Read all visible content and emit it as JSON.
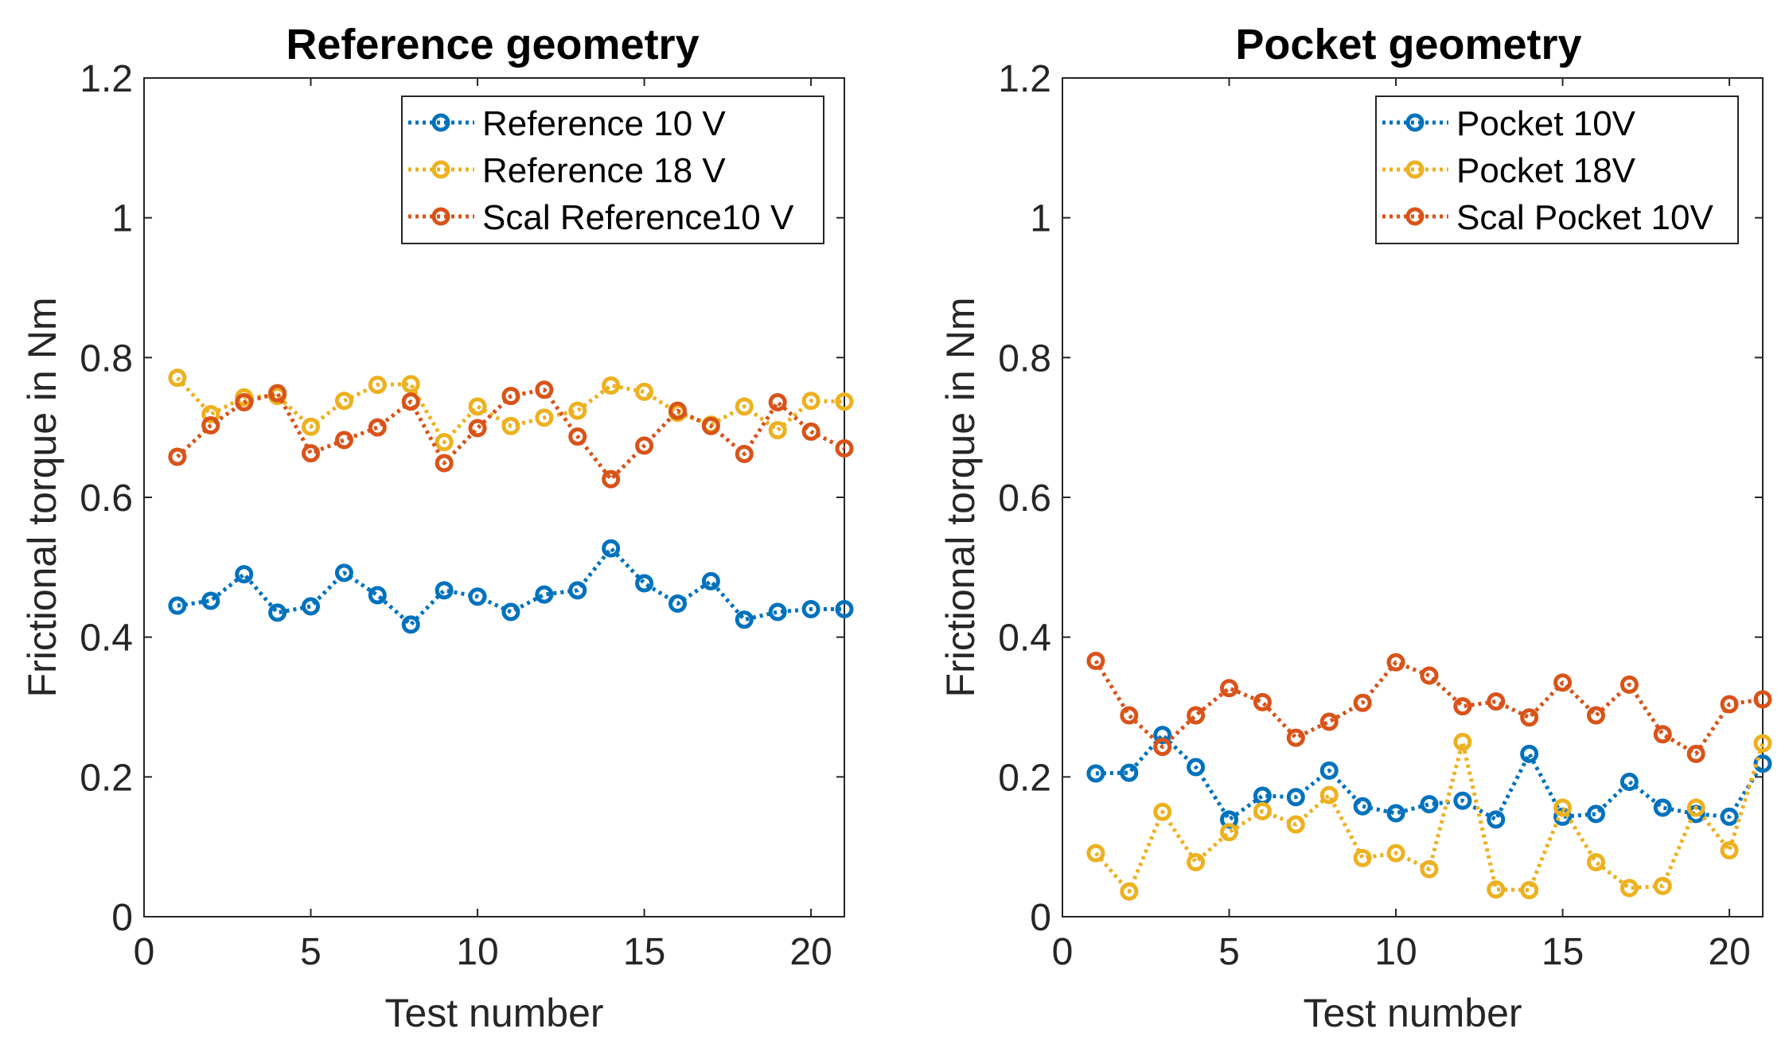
{
  "chart_data": [
    {
      "type": "line",
      "title": "Reference geometry",
      "xlabel": "Test number",
      "ylabel": "Frictional torque in Nm",
      "xlim": [
        0,
        21
      ],
      "ylim": [
        0,
        1.2
      ],
      "xticks": [
        0,
        5,
        10,
        15,
        20
      ],
      "xtick_labels": [
        "0",
        "5",
        "10",
        "15",
        "20"
      ],
      "yticks": [
        0,
        0.2,
        0.4,
        0.6,
        0.8,
        1,
        1.2
      ],
      "ytick_labels": [
        "0",
        "0.2",
        "0.4",
        "0.6",
        "0.8",
        "1",
        "1.2"
      ],
      "legend_position": "top-right",
      "x": [
        1,
        2,
        3,
        4,
        5,
        6,
        7,
        8,
        9,
        10,
        11,
        12,
        13,
        14,
        15,
        16,
        17,
        18,
        19,
        20,
        21
      ],
      "series": [
        {
          "name": "Reference 10 V",
          "color": "#0072BD",
          "values": [
            0.445,
            0.452,
            0.49,
            0.435,
            0.444,
            0.492,
            0.46,
            0.418,
            0.467,
            0.458,
            0.436,
            0.461,
            0.467,
            0.527,
            0.477,
            0.448,
            0.48,
            0.425,
            0.436,
            0.44,
            0.44
          ]
        },
        {
          "name": "Reference 18 V",
          "color": "#EDB120",
          "values": [
            0.771,
            0.719,
            0.743,
            0.745,
            0.701,
            0.738,
            0.761,
            0.762,
            0.679,
            0.73,
            0.702,
            0.714,
            0.724,
            0.76,
            0.751,
            0.721,
            0.704,
            0.73,
            0.696,
            0.738,
            0.737
          ]
        },
        {
          "name": "Scal Reference10 V",
          "color": "#D95319",
          "values": [
            0.658,
            0.703,
            0.736,
            0.749,
            0.663,
            0.682,
            0.7,
            0.737,
            0.649,
            0.699,
            0.745,
            0.754,
            0.687,
            0.626,
            0.674,
            0.724,
            0.702,
            0.662,
            0.736,
            0.694,
            0.67
          ]
        }
      ]
    },
    {
      "type": "line",
      "title": "Pocket geometry",
      "xlabel": "Test number",
      "ylabel": "Frictional torque in Nm",
      "xlim": [
        0,
        21
      ],
      "ylim": [
        0,
        1.2
      ],
      "xticks": [
        0,
        5,
        10,
        15,
        20
      ],
      "xtick_labels": [
        "0",
        "5",
        "10",
        "15",
        "20"
      ],
      "yticks": [
        0,
        0.2,
        0.4,
        0.6,
        0.8,
        1,
        1.2
      ],
      "ytick_labels": [
        "0",
        "0.2",
        "0.4",
        "0.6",
        "0.8",
        "1",
        "1.2"
      ],
      "legend_position": "top-right",
      "x": [
        1,
        2,
        3,
        4,
        5,
        6,
        7,
        8,
        9,
        10,
        11,
        12,
        13,
        14,
        15,
        16,
        17,
        18,
        19,
        20,
        21
      ],
      "series": [
        {
          "name": "Pocket 10V",
          "color": "#0072BD",
          "values": [
            0.205,
            0.206,
            0.26,
            0.214,
            0.139,
            0.173,
            0.171,
            0.209,
            0.158,
            0.148,
            0.161,
            0.166,
            0.139,
            0.233,
            0.143,
            0.147,
            0.193,
            0.156,
            0.147,
            0.143,
            0.219
          ]
        },
        {
          "name": "Pocket 18V",
          "color": "#EDB120",
          "values": [
            0.091,
            0.036,
            0.15,
            0.078,
            0.121,
            0.151,
            0.132,
            0.174,
            0.084,
            0.091,
            0.068,
            0.25,
            0.039,
            0.038,
            0.156,
            0.078,
            0.041,
            0.044,
            0.156,
            0.095,
            0.248
          ]
        },
        {
          "name": "Scal Pocket 10V",
          "color": "#D95319",
          "values": [
            0.366,
            0.288,
            0.243,
            0.288,
            0.327,
            0.307,
            0.256,
            0.279,
            0.306,
            0.364,
            0.345,
            0.301,
            0.308,
            0.285,
            0.335,
            0.288,
            0.332,
            0.261,
            0.233,
            0.304,
            0.311
          ]
        }
      ]
    }
  ]
}
